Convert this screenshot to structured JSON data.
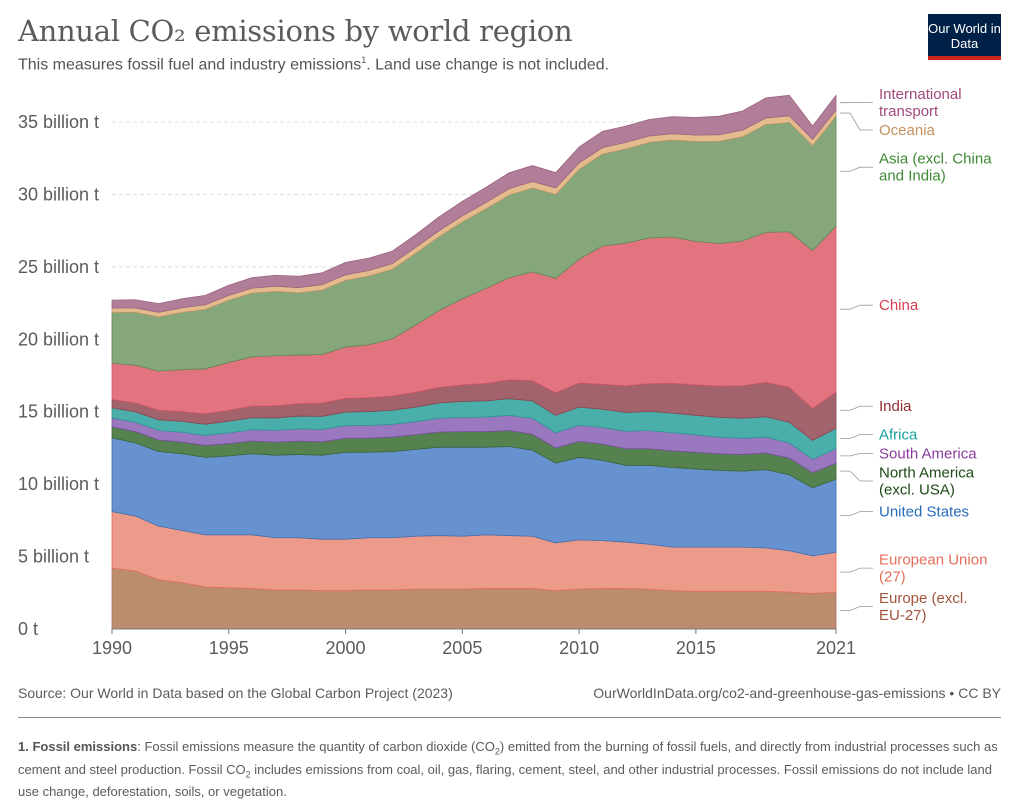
{
  "header": {
    "title": "Annual CO₂ emissions by world region",
    "subtitle": "This measures fossil fuel and industry emissions",
    "subtitle_sup": "1",
    "subtitle_tail": ". Land use change is not included.",
    "logo": "Our World in Data"
  },
  "footer": {
    "source": "Source: Our World in Data based on the Global Carbon Project (2023)",
    "url": "OurWorldInData.org/co2-and-greenhouse-gas-emissions • CC BY",
    "footnote_label": "1. Fossil emissions",
    "footnote_text_1": ": Fossil emissions measure the quantity of carbon dioxide (CO",
    "footnote_sub_1": "2",
    "footnote_text_2": ") emitted from the burning of fossil fuels, and directly from industrial processes such as cement and steel production. Fossil CO",
    "footnote_sub_2": "2",
    "footnote_text_3": " includes emissions from coal, oil, gas, flaring, cement, steel, and other industrial processes. Fossil emissions do not include land use change, deforestation, soils, or vegetation."
  },
  "chart_data": {
    "type": "area",
    "stacked": true,
    "title": "Annual CO₂ emissions by world region",
    "xlabel": "",
    "ylabel": "",
    "xlim": [
      1990,
      2021
    ],
    "ylim": [
      0,
      37
    ],
    "x": [
      1990,
      1991,
      1992,
      1993,
      1994,
      1995,
      1996,
      1997,
      1998,
      1999,
      2000,
      2001,
      2002,
      2003,
      2004,
      2005,
      2006,
      2007,
      2008,
      2009,
      2010,
      2011,
      2012,
      2013,
      2014,
      2015,
      2016,
      2017,
      2018,
      2019,
      2020,
      2021
    ],
    "x_ticks": [
      {
        "value": 1990,
        "label": "1990"
      },
      {
        "value": 1995,
        "label": "1995"
      },
      {
        "value": 2000,
        "label": "2000"
      },
      {
        "value": 2005,
        "label": "2005"
      },
      {
        "value": 2010,
        "label": "2010"
      },
      {
        "value": 2015,
        "label": "2015"
      },
      {
        "value": 2021,
        "label": "2021"
      }
    ],
    "y_ticks": [
      {
        "value": 0,
        "label": "0 t"
      },
      {
        "value": 5,
        "label": "5 billion t"
      },
      {
        "value": 10,
        "label": "10 billion t"
      },
      {
        "value": 15,
        "label": "15 billion t"
      },
      {
        "value": 20,
        "label": "20 billion t"
      },
      {
        "value": 25,
        "label": "25 billion t"
      },
      {
        "value": 30,
        "label": "30 billion t"
      },
      {
        "value": 35,
        "label": "35 billion t"
      }
    ],
    "unit": "billion t",
    "series": [
      {
        "name": "Europe (excl. EU-27)",
        "label_lines": [
          "Europe (excl.",
          "EU-27)"
        ],
        "color": "#b0756a",
        "fill": "#bb8c6e",
        "text_color": "#a2553b",
        "values": [
          4.2,
          4.0,
          3.4,
          3.2,
          2.9,
          2.85,
          2.8,
          2.7,
          2.7,
          2.65,
          2.65,
          2.7,
          2.7,
          2.75,
          2.75,
          2.75,
          2.8,
          2.8,
          2.8,
          2.65,
          2.75,
          2.8,
          2.8,
          2.75,
          2.65,
          2.6,
          2.6,
          2.6,
          2.6,
          2.55,
          2.45,
          2.55
        ]
      },
      {
        "name": "European Union (27)",
        "label_lines": [
          "European Union",
          "(27)"
        ],
        "color": "#e56e5a",
        "fill": "#ec9a8a",
        "text_color": "#e56e5a",
        "values": [
          3.9,
          3.8,
          3.7,
          3.6,
          3.6,
          3.65,
          3.7,
          3.6,
          3.6,
          3.55,
          3.55,
          3.6,
          3.6,
          3.65,
          3.7,
          3.65,
          3.7,
          3.65,
          3.6,
          3.3,
          3.4,
          3.3,
          3.2,
          3.1,
          3.0,
          3.05,
          3.05,
          3.05,
          3.0,
          2.85,
          2.6,
          2.75
        ]
      },
      {
        "name": "United States",
        "label_lines": [
          "United States"
        ],
        "color": "#3f6fb0",
        "fill": "#6693cf",
        "text_color": "#286bbb",
        "values": [
          5.1,
          5.05,
          5.15,
          5.3,
          5.35,
          5.45,
          5.6,
          5.7,
          5.75,
          5.8,
          6.0,
          5.9,
          5.95,
          6.0,
          6.1,
          6.15,
          6.05,
          6.15,
          5.95,
          5.5,
          5.7,
          5.55,
          5.3,
          5.45,
          5.5,
          5.4,
          5.3,
          5.25,
          5.4,
          5.25,
          4.7,
          5.05
        ]
      },
      {
        "name": "North America (excl. USA)",
        "label_lines": [
          "North America",
          "(excl. USA)"
        ],
        "color": "#3b6635",
        "fill": "#56824f",
        "text_color": "#1e4a17",
        "values": [
          0.75,
          0.78,
          0.8,
          0.8,
          0.82,
          0.85,
          0.88,
          0.9,
          0.92,
          0.93,
          0.97,
          0.98,
          1.0,
          1.02,
          1.05,
          1.08,
          1.08,
          1.1,
          1.1,
          1.05,
          1.1,
          1.12,
          1.15,
          1.15,
          1.15,
          1.15,
          1.15,
          1.15,
          1.15,
          1.15,
          1.05,
          1.1
        ]
      },
      {
        "name": "South America",
        "label_lines": [
          "South America"
        ],
        "color": "#7d4ea6",
        "fill": "#9a78bf",
        "text_color": "#883c9e",
        "values": [
          0.62,
          0.64,
          0.66,
          0.68,
          0.7,
          0.74,
          0.78,
          0.82,
          0.85,
          0.85,
          0.88,
          0.88,
          0.88,
          0.9,
          0.95,
          0.98,
          1.0,
          1.05,
          1.1,
          1.05,
          1.12,
          1.15,
          1.2,
          1.25,
          1.25,
          1.2,
          1.15,
          1.12,
          1.1,
          1.05,
          0.92,
          1.0
        ]
      },
      {
        "name": "Africa",
        "label_lines": [
          "Africa"
        ],
        "color": "#2a9a93",
        "fill": "#4aaeaa",
        "text_color": "#18a29e",
        "values": [
          0.7,
          0.72,
          0.73,
          0.75,
          0.77,
          0.8,
          0.83,
          0.85,
          0.88,
          0.9,
          0.92,
          0.95,
          0.97,
          1.0,
          1.05,
          1.1,
          1.12,
          1.15,
          1.2,
          1.2,
          1.25,
          1.25,
          1.3,
          1.32,
          1.35,
          1.35,
          1.36,
          1.38,
          1.4,
          1.42,
          1.3,
          1.4
        ]
      },
      {
        "name": "India",
        "label_lines": [
          "India"
        ],
        "color": "#8a4750",
        "fill": "#a2636c",
        "text_color": "#912e33",
        "values": [
          0.58,
          0.62,
          0.66,
          0.68,
          0.72,
          0.76,
          0.8,
          0.84,
          0.86,
          0.92,
          0.95,
          0.96,
          0.98,
          1.02,
          1.08,
          1.14,
          1.2,
          1.3,
          1.4,
          1.56,
          1.66,
          1.72,
          1.84,
          1.92,
          2.06,
          2.1,
          2.16,
          2.24,
          2.38,
          2.4,
          2.2,
          2.5
        ]
      },
      {
        "name": "China",
        "label_lines": [
          "China"
        ],
        "color": "#d45868",
        "fill": "#e27480",
        "text_color": "#d73c50",
        "values": [
          2.5,
          2.6,
          2.7,
          2.9,
          3.1,
          3.3,
          3.4,
          3.45,
          3.35,
          3.35,
          3.55,
          3.65,
          3.95,
          4.65,
          5.3,
          5.95,
          6.55,
          7.05,
          7.5,
          7.9,
          8.55,
          9.55,
          9.85,
          10.05,
          10.1,
          9.9,
          9.85,
          10.0,
          10.35,
          10.75,
          10.9,
          11.45
        ]
      },
      {
        "name": "Asia (excl. China and India)",
        "label_lines": [
          "Asia (excl. China",
          "and India)"
        ],
        "color": "#5e8a53",
        "fill": "#86a67b",
        "text_color": "#3e8a33",
        "values": [
          3.5,
          3.65,
          3.75,
          3.95,
          4.1,
          4.3,
          4.4,
          4.45,
          4.3,
          4.45,
          4.6,
          4.75,
          4.8,
          4.95,
          5.1,
          5.3,
          5.5,
          5.7,
          5.8,
          5.8,
          6.2,
          6.35,
          6.5,
          6.6,
          6.7,
          6.9,
          7.05,
          7.2,
          7.45,
          7.55,
          7.25,
          7.6
        ]
      },
      {
        "name": "Oceania",
        "label_lines": [
          "Oceania"
        ],
        "color": "#c99a6a",
        "fill": "#e4bb8c",
        "text_color": "#c4905e",
        "values": [
          0.3,
          0.3,
          0.31,
          0.32,
          0.32,
          0.33,
          0.34,
          0.35,
          0.36,
          0.37,
          0.38,
          0.38,
          0.39,
          0.4,
          0.41,
          0.42,
          0.43,
          0.44,
          0.44,
          0.44,
          0.44,
          0.44,
          0.45,
          0.44,
          0.43,
          0.44,
          0.45,
          0.45,
          0.45,
          0.45,
          0.43,
          0.43
        ]
      },
      {
        "name": "International transport",
        "label_lines": [
          "International",
          "transport"
        ],
        "color": "#9c6381",
        "fill": "#b07e98",
        "text_color": "#a04a7a",
        "values": [
          0.55,
          0.57,
          0.6,
          0.62,
          0.65,
          0.7,
          0.72,
          0.76,
          0.78,
          0.82,
          0.86,
          0.85,
          0.86,
          0.88,
          0.95,
          1.0,
          1.05,
          1.1,
          1.1,
          1.05,
          1.1,
          1.12,
          1.12,
          1.14,
          1.18,
          1.22,
          1.28,
          1.32,
          1.38,
          1.42,
          0.92,
          1.0
        ]
      }
    ]
  }
}
